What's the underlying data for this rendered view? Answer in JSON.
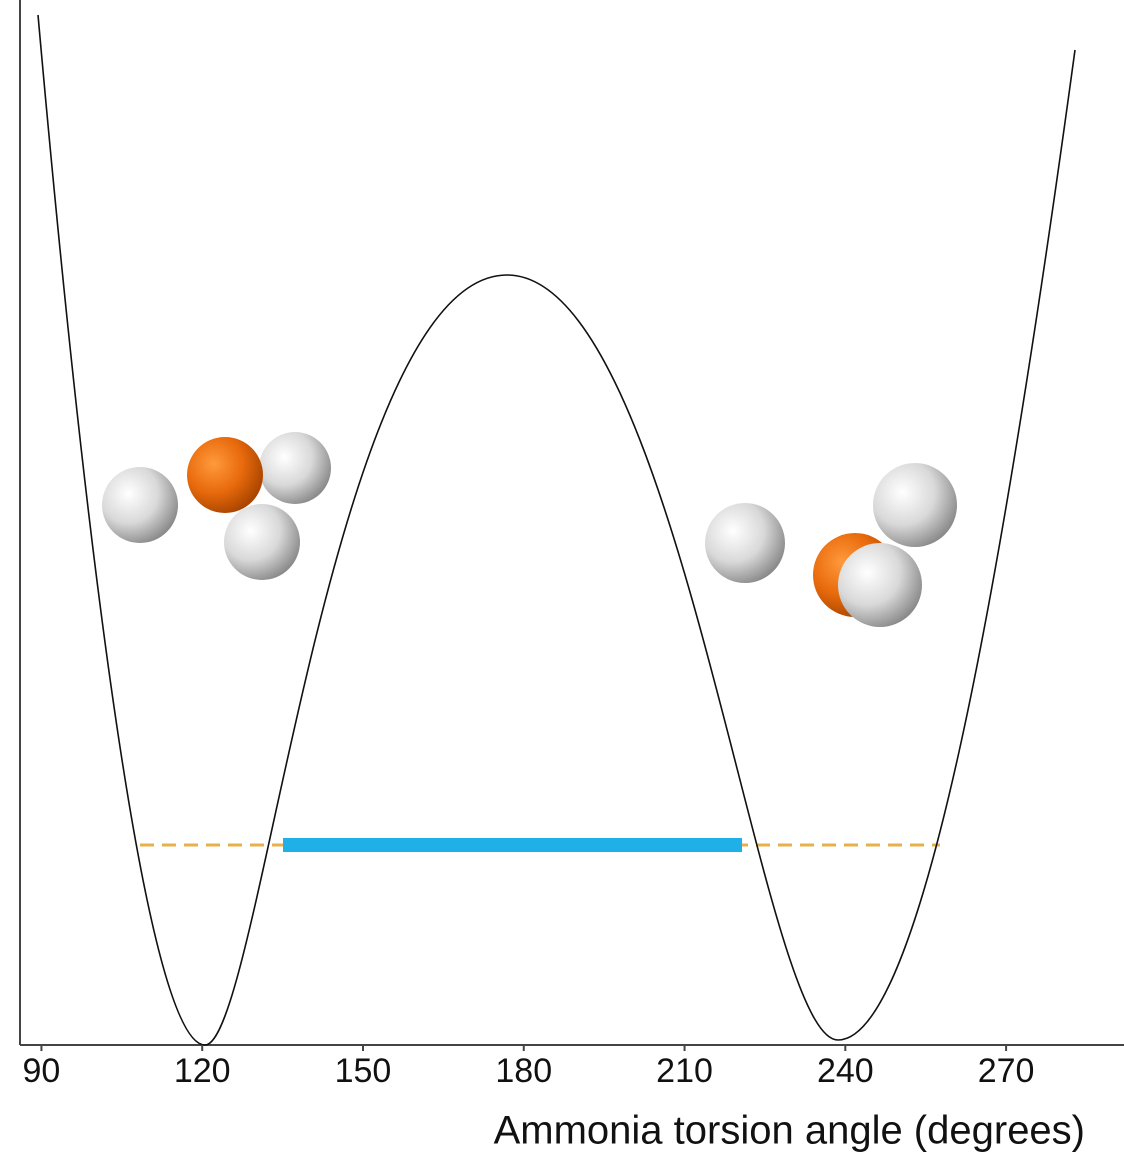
{
  "chart_data": {
    "type": "potential",
    "xlabel": "Ammonia torsion angle (degrees)",
    "xlim": [
      86,
      292
    ],
    "xticks": [
      90,
      120,
      150,
      180,
      210,
      240,
      270
    ]
  }
}
